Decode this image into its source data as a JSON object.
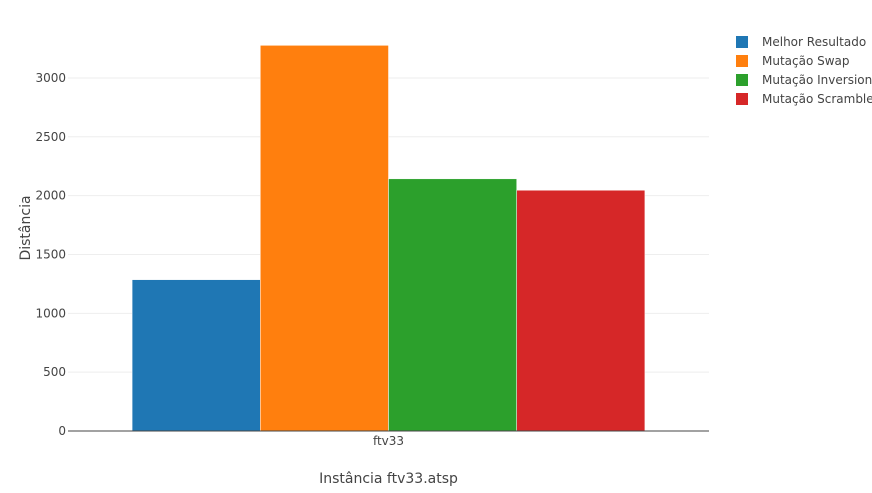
{
  "chart_data": {
    "type": "bar",
    "title": "",
    "xlabel": "Instância ftv33.atsp",
    "ylabel": "Distância",
    "categories": [
      "ftv33"
    ],
    "ylim": [
      0,
      3450
    ],
    "yticks": [
      0,
      500,
      1000,
      1500,
      2000,
      2500,
      3000
    ],
    "grid": true,
    "legend_position": "top-right",
    "series": [
      {
        "name": "Melhor Resultado",
        "values": [
          1286
        ],
        "color": "#1f77b4"
      },
      {
        "name": "Mutação Swap",
        "values": [
          3277
        ],
        "color": "#ff7f0e"
      },
      {
        "name": "Mutação Inversion",
        "values": [
          2143
        ],
        "color": "#2ca02c"
      },
      {
        "name": "Mutação Scramble",
        "values": [
          2046
        ],
        "color": "#d62728"
      }
    ]
  }
}
